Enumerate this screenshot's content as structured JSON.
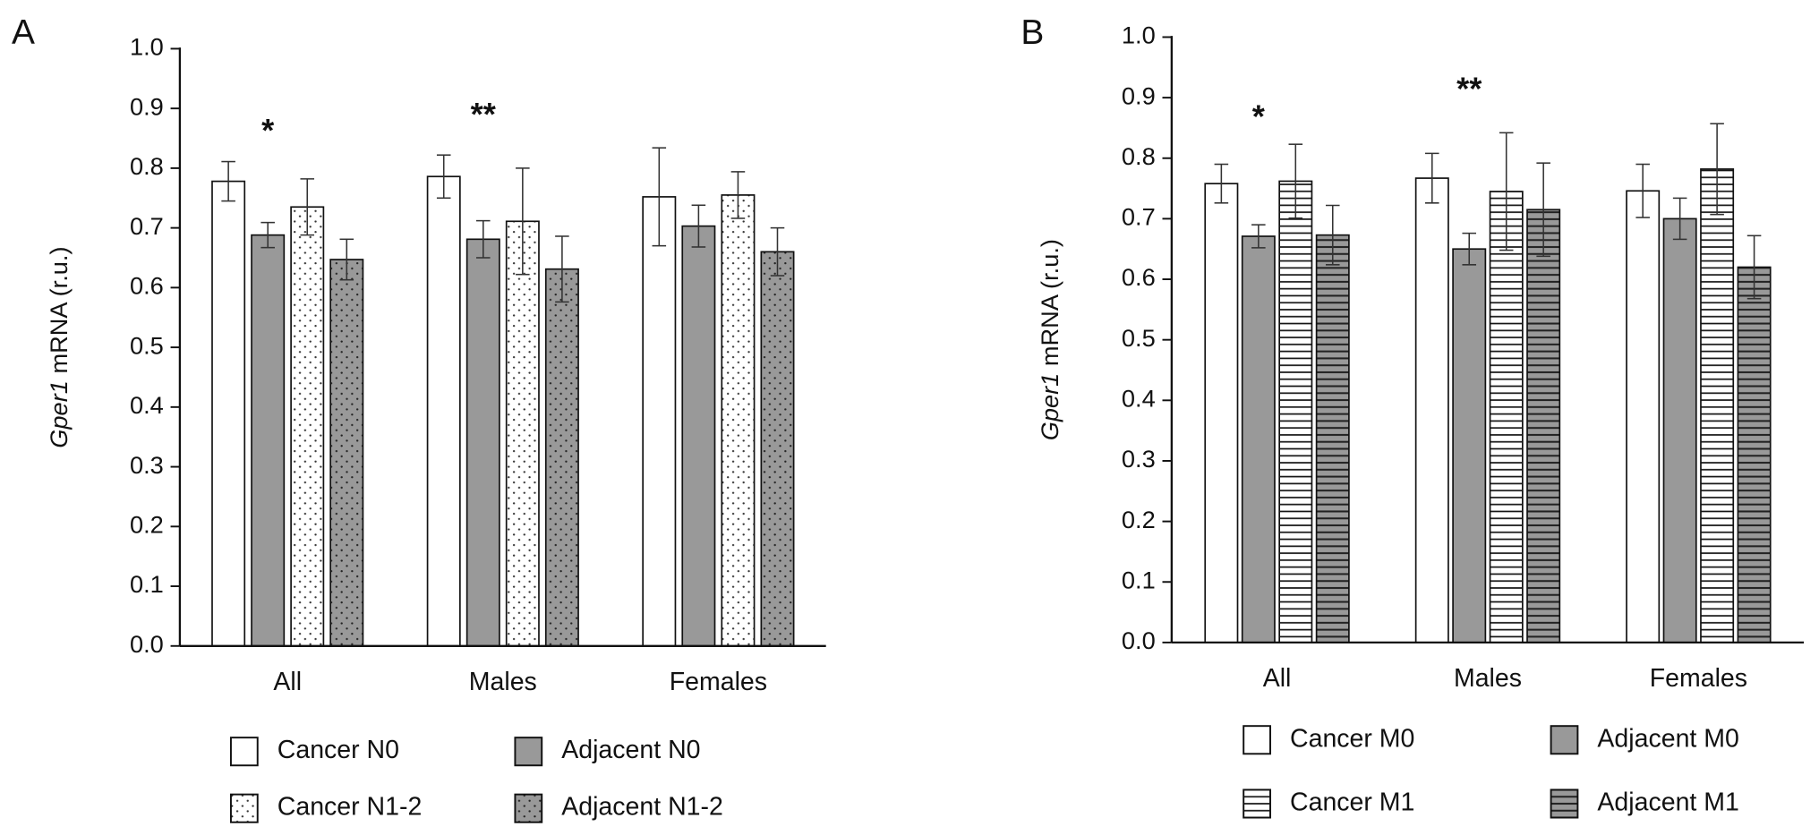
{
  "chart_data": [
    {
      "type": "bar",
      "panel": "A",
      "ylabel": {
        "gene": "Gper1",
        "unit": "mRNA (r.u.)"
      },
      "categories": [
        "All",
        "Males",
        "Females"
      ],
      "series": [
        {
          "name": "Cancer N0",
          "color": "#ffffff",
          "pattern": "solid",
          "values": [
            0.778,
            0.786,
            0.752
          ],
          "errors": [
            0.033,
            0.036,
            0.082
          ]
        },
        {
          "name": "Adjacent N0",
          "color": "#999999",
          "pattern": "solid",
          "values": [
            0.688,
            0.681,
            0.703
          ],
          "errors": [
            0.021,
            0.031,
            0.035
          ]
        },
        {
          "name": "Cancer N1-2",
          "color": "#ffffff",
          "pattern": "dots",
          "values": [
            0.735,
            0.711,
            0.755
          ],
          "errors": [
            0.047,
            0.089,
            0.039
          ]
        },
        {
          "name": "Adjacent N1-2",
          "color": "#999999",
          "pattern": "dots",
          "values": [
            0.647,
            0.631,
            0.66
          ],
          "errors": [
            0.034,
            0.055,
            0.04
          ]
        }
      ],
      "annotations": [
        "*",
        "**"
      ],
      "ylim": [
        0,
        1
      ],
      "yticks": [
        {
          "value": 0,
          "label": "0.0"
        },
        0.1,
        0.2,
        0.3,
        0.4,
        0.5,
        0.6,
        0.7,
        0.8,
        0.9,
        {
          "value": 1,
          "label": "1.0"
        }
      ],
      "legend": "bottom"
    },
    {
      "type": "bar",
      "panel": "B",
      "ylabel": {
        "gene": "Gper1",
        "unit": "mRNA (r.u.)"
      },
      "categories": [
        "All",
        "Males",
        "Females"
      ],
      "series": [
        {
          "name": "Cancer M0",
          "color": "#ffffff",
          "pattern": "solid",
          "values": [
            0.758,
            0.767,
            0.746
          ],
          "errors": [
            0.032,
            0.041,
            0.044
          ]
        },
        {
          "name": "Adjacent M0",
          "color": "#999999",
          "pattern": "solid",
          "values": [
            0.671,
            0.65,
            0.7
          ],
          "errors": [
            0.019,
            0.026,
            0.034
          ]
        },
        {
          "name": "Cancer M1",
          "color": "#ffffff",
          "pattern": "hlines",
          "values": [
            0.762,
            0.745,
            0.782
          ],
          "errors": [
            0.061,
            0.097,
            0.075
          ]
        },
        {
          "name": "Adjacent M1",
          "color": "#999999",
          "pattern": "hlines",
          "values": [
            0.673,
            0.715,
            0.62
          ],
          "errors": [
            0.049,
            0.077,
            0.052
          ]
        }
      ],
      "annotations": [
        "*",
        "**"
      ],
      "ylim": [
        0,
        1
      ],
      "yticks": [
        {
          "value": 0,
          "label": "0.0"
        },
        0.1,
        0.2,
        0.3,
        0.4,
        0.5,
        0.6,
        0.7,
        0.8,
        0.9,
        {
          "value": 1,
          "label": "1.0"
        }
      ],
      "legend": "bottom"
    }
  ]
}
